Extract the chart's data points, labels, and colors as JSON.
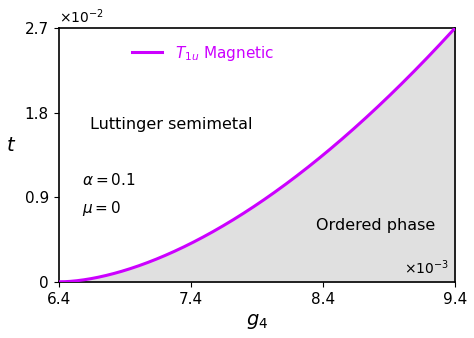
{
  "x_min": 0.0064,
  "x_max": 0.0094,
  "y_min": 0.0,
  "y_max": 0.027,
  "x_ticks": [
    0.0064,
    0.0074,
    0.0084,
    0.0094
  ],
  "x_tick_labels": [
    "6.4",
    "7.4",
    "8.4",
    "9.4"
  ],
  "y_ticks": [
    0.0,
    0.009,
    0.018,
    0.027
  ],
  "y_tick_labels": [
    "0",
    "0.9",
    "1.8",
    "2.7"
  ],
  "x_label": "$g_4$",
  "y_label": "t",
  "curve_color": "#cc00ff",
  "fill_color": "#e0e0e0",
  "bg_color": "#ffffff",
  "legend_label": "$T_{1u}$ Magnetic",
  "annotation_alpha": "$\\alpha = 0.1$",
  "annotation_mu": "$\\mu = 0$",
  "label_luttinger": "Luttinger semimetal",
  "label_ordered": "Ordered phase",
  "g4_c": 0.00642,
  "curve_power": 1.7
}
